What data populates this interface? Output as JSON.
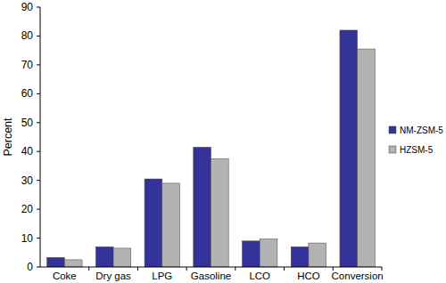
{
  "chart_data": {
    "type": "bar",
    "y_label": "Percent",
    "categories": [
      "Coke",
      "Dry gas",
      "LPG",
      "Gasoline",
      "LCO",
      "HCO",
      "Conversion"
    ],
    "series": [
      {
        "name": "NM-ZSM-5",
        "color": "#333399",
        "values": [
          3.3,
          7.0,
          30.5,
          41.5,
          9.0,
          7.0,
          82.0
        ]
      },
      {
        "name": "HZSM-5",
        "color": "#b3b3b3",
        "values": [
          2.5,
          6.5,
          29.0,
          37.5,
          9.7,
          8.3,
          75.5
        ]
      }
    ],
    "ylim": [
      0,
      90
    ],
    "yticks": [
      0,
      10,
      20,
      30,
      40,
      50,
      60,
      70,
      80,
      90
    ],
    "grid": false,
    "legend": "right"
  }
}
